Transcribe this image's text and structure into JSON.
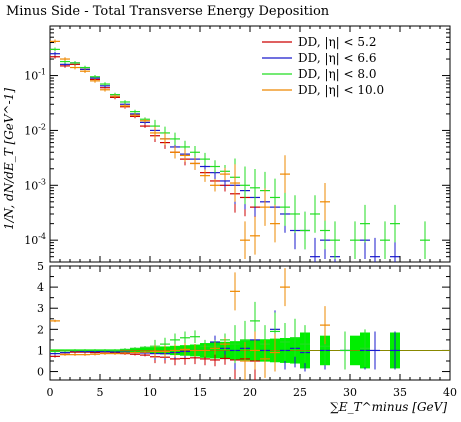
{
  "chart_data": {
    "title": "Minus Side - Total Transverse Energy Deposition",
    "xlabel": "∑E_T^minus [GeV]",
    "ylabel": "1/N, dN/dE_T [GeV^-1]",
    "xlim": [
      0,
      40
    ],
    "x_ticks": [
      "0",
      "5",
      "10",
      "15",
      "20",
      "25",
      "30",
      "35",
      "40"
    ],
    "main": {
      "type": "scatter",
      "yscale": "log",
      "ylim": [
        4e-05,
        0.8
      ],
      "y_ticks": [
        "10^-1",
        "10^-2",
        "10^-3",
        "10^-4"
      ],
      "legend_position": "top-right",
      "series": [
        {
          "name": "DD, |η| < 5.2",
          "color": "#cc0000",
          "x": [
            0.5,
            1.5,
            2.5,
            3.5,
            4.5,
            5.5,
            6.5,
            7.5,
            8.5,
            9.5,
            10.5,
            11.5,
            12.5,
            13.5,
            14.5,
            15.5,
            16.5,
            17.5,
            18.5,
            19.5,
            20.5
          ],
          "y": [
            0.22,
            0.15,
            0.16,
            0.13,
            0.085,
            0.06,
            0.04,
            0.027,
            0.018,
            0.012,
            0.008,
            0.006,
            0.004,
            0.003,
            0.0025,
            0.0017,
            0.0012,
            0.001,
            0.0007,
            0.0006,
            0.0004
          ]
        },
        {
          "name": "DD, |η| < 6.6",
          "color": "#1a1acc",
          "x": [
            0.5,
            1.5,
            2.5,
            3.5,
            4.5,
            5.5,
            6.5,
            7.5,
            8.5,
            9.5,
            10.5,
            11.5,
            12.5,
            13.5,
            14.5,
            15.5,
            16.5,
            17.5,
            18.5,
            19.5,
            20.5,
            21.5,
            22.5,
            23.5,
            24.5,
            25.5,
            26.5,
            27.5,
            28.5,
            31.5,
            32.5,
            34.5
          ],
          "y": [
            0.25,
            0.16,
            0.17,
            0.13,
            0.09,
            0.065,
            0.042,
            0.03,
            0.02,
            0.014,
            0.01,
            0.007,
            0.005,
            0.0037,
            0.003,
            0.0022,
            0.0017,
            0.0012,
            0.001,
            0.0008,
            0.0006,
            0.0005,
            0.0004,
            0.0003,
            0.00015,
            0.00015,
            5e-05,
            0.0001,
            5e-05,
            0.0001,
            5e-05,
            5e-05
          ]
        },
        {
          "name": "DD, |η| < 8.0",
          "color": "#22dd22",
          "x": [
            0.5,
            1.5,
            2.5,
            3.5,
            4.5,
            5.5,
            6.5,
            7.5,
            8.5,
            9.5,
            10.5,
            11.5,
            12.5,
            13.5,
            14.5,
            15.5,
            16.5,
            17.5,
            18.5,
            19.5,
            20.5,
            21.5,
            22.5,
            23.5,
            24.5,
            25.5,
            26.5,
            27.5,
            28.5,
            30.5,
            31.5,
            33.5,
            34.5,
            37.5
          ],
          "y": [
            0.3,
            0.18,
            0.17,
            0.14,
            0.095,
            0.07,
            0.045,
            0.033,
            0.022,
            0.016,
            0.012,
            0.009,
            0.007,
            0.005,
            0.004,
            0.003,
            0.0022,
            0.0018,
            0.0014,
            0.001,
            0.0009,
            0.0008,
            0.0006,
            0.0004,
            0.0003,
            0.00015,
            0.0003,
            0.00015,
            0.0001,
            0.0001,
            0.0002,
            0.0001,
            0.0002,
            0.0001
          ]
        },
        {
          "name": "DD, |η| < 10.0",
          "color": "#ee8800",
          "x": [
            0.5,
            1.5,
            2.5,
            3.5,
            4.5,
            5.5,
            6.5,
            7.5,
            8.5,
            9.5,
            10.5,
            11.5,
            12.5,
            13.5,
            14.5,
            15.5,
            16.5,
            17.5,
            18.5,
            19.5,
            20.5,
            21.5,
            22.5,
            23.5,
            27.5
          ],
          "y": [
            0.42,
            0.2,
            0.14,
            0.12,
            0.08,
            0.055,
            0.042,
            0.028,
            0.019,
            0.015,
            0.009,
            0.007,
            0.004,
            0.0035,
            0.0025,
            0.0015,
            0.001,
            0.0016,
            0.0011,
            0.0001,
            0.00012,
            0.0004,
            0.0002,
            0.0016,
            0.0005
          ]
        }
      ]
    },
    "ratio": {
      "type": "scatter",
      "ylim": [
        -0.4,
        5
      ],
      "y_ticks": [
        "0",
        "1",
        "2",
        "3",
        "4",
        "5"
      ],
      "band_color": "#00ee00",
      "series": [
        {
          "name": "DD, |η| < 5.2",
          "color": "#cc0000",
          "x": [
            0.5,
            1.5,
            2.5,
            3.5,
            4.5,
            5.5,
            6.5,
            7.5,
            8.5,
            9.5,
            10.5,
            11.5,
            12.5,
            13.5,
            14.5,
            15.5,
            16.5,
            17.5,
            18.5,
            19.5,
            20.5
          ],
          "y": [
            0.72,
            0.82,
            0.92,
            0.92,
            0.9,
            0.88,
            0.9,
            0.85,
            0.82,
            0.78,
            0.7,
            0.68,
            0.6,
            0.62,
            0.65,
            0.6,
            0.55,
            0.62,
            0.55,
            0.6,
            0.5
          ]
        },
        {
          "name": "DD, |η| < 6.6",
          "color": "#1a1acc",
          "x": [
            0.5,
            1.5,
            2.5,
            3.5,
            4.5,
            5.5,
            6.5,
            7.5,
            8.5,
            9.5,
            10.5,
            11.5,
            12.5,
            13.5,
            14.5,
            15.5,
            16.5,
            17.5,
            18.5,
            19.5,
            20.5,
            21.5,
            22.5,
            23.5,
            24.5,
            25.5,
            27.5,
            29.5,
            31.5,
            32.5,
            34.5
          ],
          "y": [
            0.85,
            0.9,
            0.98,
            0.95,
            0.95,
            0.95,
            0.93,
            0.92,
            0.9,
            0.88,
            0.85,
            0.85,
            0.9,
            0.95,
            1.0,
            1.0,
            1.4,
            1.1,
            1.0,
            1.1,
            1.5,
            1.0,
            2.0,
            1.0,
            1.1,
            0.9,
            1.0,
            1.0,
            1.0,
            1.0,
            1.0
          ]
        },
        {
          "name": "DD, |η| < 8.0",
          "color": "#22dd22",
          "x": [
            0.5,
            1.5,
            2.5,
            3.5,
            4.5,
            5.5,
            6.5,
            7.5,
            8.5,
            9.5,
            10.5,
            11.5,
            12.5,
            13.5,
            14.5,
            15.5,
            16.5,
            17.5,
            18.5,
            19.5,
            20.5,
            21.5,
            22.5,
            23.5,
            24.5,
            25.5,
            27.5,
            29.5,
            31.5
          ],
          "y": [
            0.95,
            0.98,
            1.0,
            1.0,
            1.0,
            1.0,
            1.0,
            1.05,
            1.1,
            1.15,
            1.2,
            1.3,
            1.5,
            1.6,
            1.65,
            1.2,
            1.2,
            1.5,
            1.3,
            1.5,
            2.4,
            1.3,
            1.9,
            1.4,
            1.6,
            1.3,
            1.2,
            1.0,
            1.1
          ]
        },
        {
          "name": "DD, |η| < 10.0",
          "color": "#ee8800",
          "x": [
            0.5,
            1.5,
            2.5,
            3.5,
            4.5,
            5.5,
            6.5,
            7.5,
            8.5,
            9.5,
            10.5,
            11.5,
            12.5,
            13.5,
            14.5,
            15.5,
            16.5,
            17.5,
            18.5,
            19.5,
            20.5,
            21.5,
            22.5,
            23.5,
            27.5
          ],
          "y": [
            2.4,
            0.8,
            0.8,
            0.8,
            0.82,
            0.85,
            0.85,
            0.88,
            0.9,
            0.92,
            0.95,
            0.95,
            1.0,
            1.05,
            1.0,
            1.0,
            1.1,
            1.3,
            3.8,
            0.5,
            1.0,
            0.6,
            0.9,
            4.0,
            2.2
          ]
        }
      ]
    }
  }
}
